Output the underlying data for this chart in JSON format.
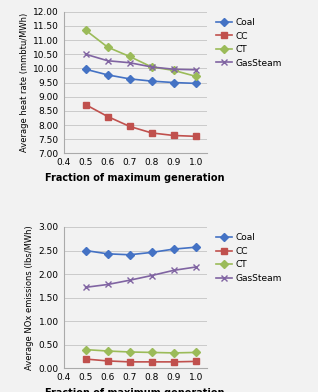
{
  "x": [
    0.5,
    0.6,
    0.7,
    0.8,
    0.9,
    1.0
  ],
  "heat_rate": {
    "Coal": [
      9.97,
      9.77,
      9.63,
      9.55,
      9.5,
      9.47
    ],
    "CC": [
      8.72,
      8.3,
      7.95,
      7.72,
      7.63,
      7.6
    ],
    "CT": [
      11.35,
      10.75,
      10.42,
      10.05,
      9.93,
      9.72
    ],
    "GasSteam": [
      10.5,
      10.27,
      10.2,
      10.05,
      9.97,
      9.95
    ]
  },
  "nox": {
    "Coal": [
      2.5,
      2.43,
      2.41,
      2.46,
      2.53,
      2.57
    ],
    "CC": [
      0.2,
      0.16,
      0.14,
      0.14,
      0.14,
      0.15
    ],
    "CT": [
      0.4,
      0.37,
      0.35,
      0.34,
      0.33,
      0.34
    ],
    "GasSteam": [
      1.72,
      1.78,
      1.87,
      1.97,
      2.08,
      2.15
    ]
  },
  "colors": {
    "Coal": "#4472C4",
    "CC": "#C0504D",
    "CT": "#9BBB59",
    "GasSteam": "#8064A2"
  },
  "markers": {
    "Coal": "D",
    "CC": "s",
    "CT": "D",
    "GasSteam": "x"
  },
  "heat_ylabel": "Average heat rate (mmbtu/MWh)",
  "nox_ylabel": "Average NOx emissions (lbs/MWh)",
  "xlabel": "Fraction of maximum generation",
  "heat_ylim": [
    7.0,
    12.0
  ],
  "heat_yticks": [
    7.0,
    7.5,
    8.0,
    8.5,
    9.0,
    9.5,
    10.0,
    10.5,
    11.0,
    11.5,
    12.0
  ],
  "nox_ylim": [
    0.0,
    3.0
  ],
  "nox_yticks": [
    0.0,
    0.5,
    1.0,
    1.5,
    2.0,
    2.5,
    3.0
  ],
  "xlim": [
    0.4,
    1.05
  ],
  "xticks": [
    0.4,
    0.5,
    0.6,
    0.7,
    0.8,
    0.9,
    1.0
  ],
  "bg_color": "#F2F2F2",
  "plot_bg": "#F2F2F2",
  "legend_order": [
    "Coal",
    "CC",
    "CT",
    "GasSteam"
  ],
  "marker_size": 4,
  "line_width": 1.2
}
